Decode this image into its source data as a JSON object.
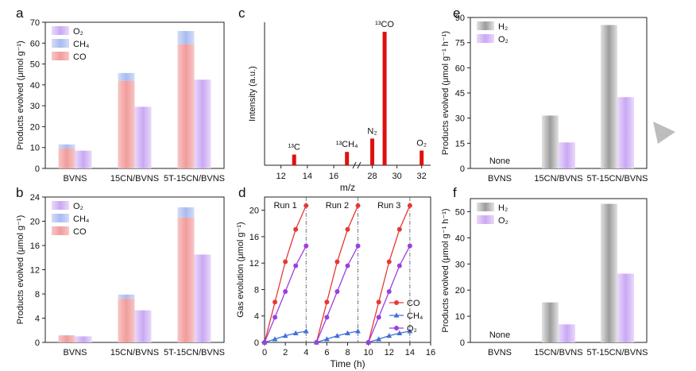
{
  "chart_data": [
    {
      "panel": "a",
      "type": "bar",
      "ylabel": "Products evolved (μmol g⁻¹)",
      "ylim": [
        0,
        70
      ],
      "yticks": [
        0,
        10,
        20,
        30,
        40,
        50,
        60,
        70
      ],
      "categories": [
        "BVNS",
        "15CN/BVNS",
        "5T-15CN/BVNS"
      ],
      "stack_series": [
        {
          "name": "CO",
          "values": [
            9.5,
            42,
            59.5
          ]
        },
        {
          "name": "CH₄",
          "values": [
            2,
            3.7,
            6.3
          ]
        }
      ],
      "side_series": {
        "name": "O₂",
        "values": [
          8.5,
          29.5,
          42.5
        ]
      },
      "legend": [
        "O₂",
        "CH₄",
        "CO"
      ],
      "legend_position": "top-left"
    },
    {
      "panel": "b",
      "type": "bar",
      "ylabel": "Products evolved (μmol g⁻¹)",
      "ylim": [
        0,
        24
      ],
      "yticks": [
        0,
        4,
        8,
        12,
        16,
        20,
        24
      ],
      "categories": [
        "BVNS",
        "15CN/BVNS",
        "5T-15CN/BVNS"
      ],
      "stack_series": [
        {
          "name": "CO",
          "values": [
            1.1,
            7.2,
            20.6
          ]
        },
        {
          "name": "CH₄",
          "values": [
            0.1,
            0.7,
            1.7
          ]
        }
      ],
      "side_series": {
        "name": "O₂",
        "values": [
          1.0,
          5.3,
          14.5
        ]
      },
      "legend": [
        "O₂",
        "CH₄",
        "CO"
      ],
      "legend_position": "top-left"
    },
    {
      "panel": "c",
      "type": "bar",
      "subtype": "mass-spectrum",
      "xlabel": "m/z",
      "ylabel": "Intensity (a.u.)",
      "xticks": [
        "12",
        "14",
        "16",
        "28",
        "30",
        "32"
      ],
      "axis_break": "between 16 and 28",
      "peaks": [
        {
          "label": "¹³C",
          "mz": 13,
          "intensity": 0.08
        },
        {
          "label": "¹³CH₄",
          "mz": 17,
          "intensity": 0.1
        },
        {
          "label": "N₂",
          "mz": 28,
          "intensity": 0.2
        },
        {
          "label": "¹³CO",
          "mz": 29,
          "intensity": 1.0
        },
        {
          "label": "O₂",
          "mz": 32,
          "intensity": 0.11
        }
      ]
    },
    {
      "panel": "d",
      "type": "line",
      "xlabel": "Time (h)",
      "ylabel": "Gas evolution (μmol g⁻¹)",
      "xlim": [
        0,
        16
      ],
      "ylim": [
        0,
        22
      ],
      "xticks": [
        0,
        2,
        4,
        6,
        8,
        10,
        12,
        14,
        16
      ],
      "yticks": [
        0,
        4,
        8,
        12,
        16,
        20
      ],
      "runs": [
        {
          "label": "Run 1",
          "start": 0
        },
        {
          "label": "Run 2",
          "start": 5
        },
        {
          "label": "Run 3",
          "start": 10
        }
      ],
      "run_boundaries": [
        4,
        9,
        14
      ],
      "point_offsets_h": [
        0,
        1,
        2,
        3,
        4
      ],
      "series": [
        {
          "name": "CO",
          "color": "#e53935",
          "values": [
            0,
            6.1,
            12.2,
            17.1,
            20.7
          ]
        },
        {
          "name": "CH₄",
          "color": "#3f6fd8",
          "values": [
            0,
            0.5,
            1.0,
            1.4,
            1.7
          ]
        },
        {
          "name": "O₂",
          "color": "#9c3fe0",
          "values": [
            0,
            3.8,
            7.7,
            11.6,
            14.6
          ]
        }
      ],
      "legend_position": "bottom-right"
    },
    {
      "panel": "e",
      "type": "bar",
      "ylabel": "Products evolved (μmol g⁻¹ h⁻¹)",
      "ylim": [
        0,
        90
      ],
      "yticks": [
        0,
        15,
        30,
        45,
        60,
        75,
        90
      ],
      "categories": [
        "BVNS",
        "15CN/BVNS",
        "5T-15CN/BVNS"
      ],
      "series": [
        {
          "name": "H₂",
          "values": [
            0,
            31.5,
            85.5
          ]
        },
        {
          "name": "O₂",
          "values": [
            0,
            15.5,
            42.5
          ]
        }
      ],
      "annotation": "None",
      "legend_position": "top-left"
    },
    {
      "panel": "f",
      "type": "bar",
      "ylabel": "Products evolved (μmol g⁻¹ h⁻¹)",
      "ylim": [
        0,
        55
      ],
      "yticks": [
        0,
        10,
        20,
        30,
        40,
        50
      ],
      "categories": [
        "BVNS",
        "15CN/BVNS",
        "5T-15CN/BVNS"
      ],
      "series": [
        {
          "name": "H₂",
          "values": [
            0,
            15.3,
            53
          ]
        },
        {
          "name": "O₂",
          "values": [
            0,
            6.9,
            26.3
          ]
        }
      ],
      "annotation": "None",
      "legend_position": "top-left"
    }
  ],
  "colors": {
    "co": "#f2a3a3",
    "ch4": "#b7c6f0",
    "o2": "#d2b6f5",
    "h2": "#b4b4b4"
  }
}
